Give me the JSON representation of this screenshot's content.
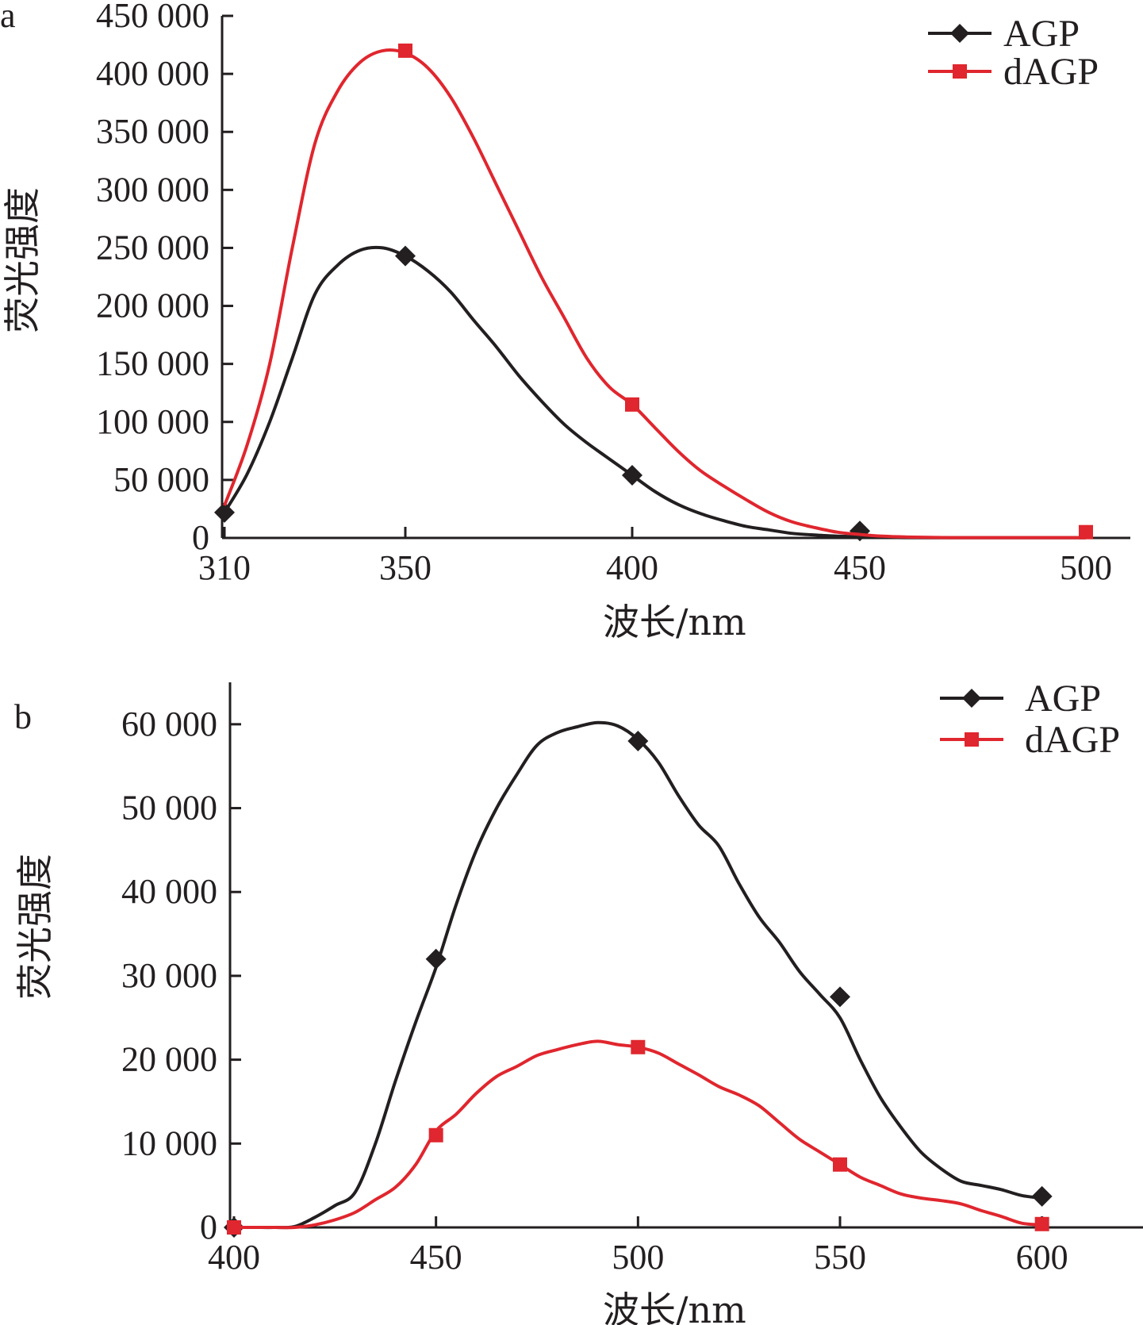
{
  "chart_data": [
    {
      "type": "line",
      "panel_label": "a",
      "xlabel": "波长/nm",
      "ylabel": "荧光强度",
      "xlim": [
        310,
        510
      ],
      "ylim": [
        0,
        450000
      ],
      "x_ticks": [
        310,
        350,
        400,
        450,
        500
      ],
      "x_tick_labels": [
        "310",
        "350",
        "400",
        "450",
        "500"
      ],
      "y_ticks": [
        0,
        50000,
        100000,
        150000,
        200000,
        250000,
        300000,
        350000,
        400000,
        450000
      ],
      "y_tick_labels": [
        "0",
        "50 000",
        "100 000",
        "150 000",
        "200 000",
        "250 000",
        "300 000",
        "350 000",
        "400 000",
        "450 000"
      ],
      "grid": false,
      "legend_position": "top-right",
      "series": [
        {
          "name": "AGP",
          "color": "#231f20",
          "marker": "diamond",
          "x": [
            310,
            315,
            320,
            325,
            330,
            335,
            340,
            345,
            350,
            355,
            360,
            365,
            370,
            375,
            380,
            385,
            390,
            395,
            400,
            405,
            410,
            415,
            420,
            425,
            430,
            435,
            440,
            445,
            450,
            455,
            460,
            470,
            480,
            490,
            500
          ],
          "y": [
            22000,
            55000,
            100000,
            155000,
            210000,
            235000,
            248000,
            250000,
            243000,
            230000,
            212000,
            188000,
            165000,
            140000,
            118000,
            98000,
            82000,
            68000,
            54000,
            40000,
            29000,
            21000,
            15000,
            10000,
            7000,
            4000,
            2500,
            1500,
            1000,
            600,
            300,
            200,
            200,
            200,
            200
          ],
          "marker_x": [
            310,
            350,
            400,
            450
          ],
          "marker_y": [
            22000,
            243000,
            54000,
            6000
          ]
        },
        {
          "name": "dAGP",
          "color": "#e0262e",
          "marker": "square",
          "x": [
            310,
            315,
            320,
            325,
            330,
            335,
            340,
            345,
            350,
            355,
            360,
            365,
            370,
            375,
            380,
            385,
            390,
            395,
            400,
            405,
            410,
            415,
            420,
            425,
            430,
            435,
            440,
            445,
            450,
            455,
            460,
            470,
            480,
            490,
            500
          ],
          "y": [
            28000,
            80000,
            150000,
            250000,
            340000,
            385000,
            410000,
            420000,
            418000,
            405000,
            380000,
            345000,
            305000,
            265000,
            225000,
            190000,
            155000,
            130000,
            115000,
            95000,
            75000,
            58000,
            45000,
            33000,
            22000,
            14000,
            9000,
            5000,
            3000,
            1500,
            800,
            300,
            300,
            300,
            300
          ],
          "marker_x": [
            350,
            400,
            500
          ],
          "marker_y": [
            420000,
            115000,
            5000
          ]
        }
      ]
    },
    {
      "type": "line",
      "panel_label": "b",
      "xlabel": "波长/nm",
      "ylabel": "荧光强度",
      "xlim": [
        400,
        625
      ],
      "ylim": [
        0,
        65000
      ],
      "x_ticks": [
        400,
        450,
        500,
        550,
        600
      ],
      "x_tick_labels": [
        "400",
        "450",
        "500",
        "550",
        "600"
      ],
      "y_ticks": [
        0,
        10000,
        20000,
        30000,
        40000,
        50000,
        60000
      ],
      "y_tick_labels": [
        "0",
        "10 000",
        "20 000",
        "30 000",
        "40 000",
        "50 000",
        "60 000"
      ],
      "grid": false,
      "legend_position": "top-right",
      "series": [
        {
          "name": "AGP",
          "color": "#231f20",
          "marker": "diamond",
          "x": [
            400,
            405,
            410,
            415,
            420,
            425,
            430,
            435,
            440,
            445,
            450,
            455,
            460,
            465,
            470,
            475,
            480,
            485,
            490,
            495,
            500,
            505,
            510,
            515,
            520,
            525,
            530,
            535,
            540,
            545,
            550,
            555,
            560,
            565,
            570,
            575,
            580,
            585,
            590,
            595,
            600
          ],
          "y": [
            0,
            0,
            0,
            100,
            1200,
            2600,
            4200,
            10000,
            17500,
            24500,
            31000,
            38500,
            45000,
            50000,
            54000,
            57500,
            59000,
            59700,
            60200,
            59800,
            58200,
            55500,
            51500,
            48000,
            45500,
            41000,
            37000,
            34000,
            30500,
            27800,
            25000,
            20000,
            15500,
            12000,
            9000,
            7000,
            5500,
            5000,
            4500,
            3800,
            3500
          ],
          "marker_x": [
            400,
            450,
            500,
            550,
            600
          ],
          "marker_y": [
            0,
            32000,
            58000,
            27500,
            3700
          ]
        },
        {
          "name": "dAGP",
          "color": "#e0262e",
          "marker": "square",
          "x": [
            400,
            405,
            410,
            415,
            420,
            425,
            430,
            435,
            440,
            445,
            450,
            455,
            460,
            465,
            470,
            475,
            480,
            485,
            490,
            495,
            500,
            505,
            510,
            515,
            520,
            525,
            530,
            535,
            540,
            545,
            550,
            555,
            560,
            565,
            570,
            575,
            580,
            585,
            590,
            595,
            600
          ],
          "y": [
            0,
            0,
            0,
            0,
            300,
            900,
            1800,
            3300,
            4800,
            7500,
            11500,
            13500,
            16000,
            18000,
            19200,
            20500,
            21200,
            21800,
            22200,
            21800,
            21500,
            20800,
            19500,
            18200,
            16800,
            15800,
            14500,
            12500,
            10500,
            9000,
            7500,
            6000,
            5000,
            4000,
            3500,
            3200,
            2800,
            2000,
            1300,
            500,
            300
          ],
          "marker_x": [
            400,
            450,
            500,
            550,
            600
          ],
          "marker_y": [
            0,
            11000,
            21500,
            7500,
            400
          ]
        }
      ]
    }
  ]
}
